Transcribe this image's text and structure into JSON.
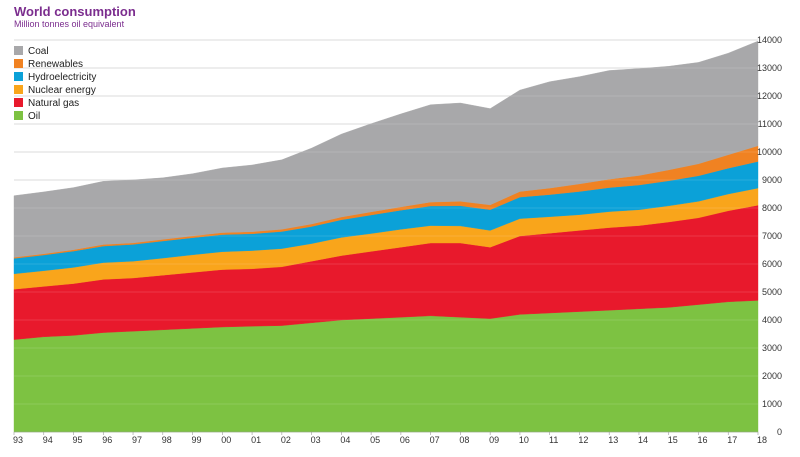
{
  "chart_data": {
    "type": "area",
    "stacked": true,
    "title": "World consumption",
    "subtitle": "Million tonnes oil equivalent",
    "x": [
      "93",
      "94",
      "95",
      "96",
      "97",
      "98",
      "99",
      "00",
      "01",
      "02",
      "03",
      "04",
      "05",
      "06",
      "07",
      "08",
      "09",
      "10",
      "11",
      "12",
      "13",
      "14",
      "15",
      "16",
      "17",
      "18"
    ],
    "ylim": [
      0,
      14000
    ],
    "yticks": [
      0,
      1000,
      2000,
      3000,
      4000,
      5000,
      6000,
      7000,
      8000,
      9000,
      10000,
      11000,
      12000,
      13000,
      14000
    ],
    "grid": true,
    "legend_position": "top-left",
    "series": [
      {
        "name": "Oil",
        "color": "#7dc242",
        "values": [
          3300,
          3400,
          3450,
          3550,
          3600,
          3650,
          3700,
          3750,
          3780,
          3800,
          3900,
          4000,
          4050,
          4100,
          4150,
          4100,
          4050,
          4200,
          4250,
          4300,
          4350,
          4400,
          4450,
          4550,
          4650,
          4700
        ]
      },
      {
        "name": "Natural gas",
        "color": "#e8192c",
        "values": [
          1800,
          1800,
          1850,
          1900,
          1900,
          1950,
          2000,
          2050,
          2050,
          2100,
          2200,
          2300,
          2400,
          2500,
          2600,
          2650,
          2550,
          2800,
          2850,
          2900,
          2950,
          2970,
          3050,
          3100,
          3250,
          3400
        ]
      },
      {
        "name": "Nuclear energy",
        "color": "#f9a51b",
        "values": [
          550,
          560,
          580,
          600,
          600,
          610,
          630,
          640,
          650,
          650,
          630,
          650,
          640,
          640,
          620,
          610,
          600,
          620,
          590,
          560,
          570,
          570,
          580,
          590,
          600,
          610
        ]
      },
      {
        "name": "Hydroelectricity",
        "color": "#0ba1d8",
        "values": [
          550,
          560,
          580,
          590,
          600,
          610,
          610,
          610,
          600,
          610,
          610,
          630,
          660,
          680,
          700,
          720,
          740,
          770,
          790,
          830,
          860,
          880,
          890,
          910,
          920,
          950
        ]
      },
      {
        "name": "Renewables",
        "color": "#f08222",
        "values": [
          40,
          45,
          50,
          55,
          55,
          60,
          65,
          70,
          75,
          80,
          90,
          100,
          110,
          120,
          140,
          160,
          170,
          200,
          230,
          270,
          300,
          340,
          390,
          430,
          480,
          560
        ]
      },
      {
        "name": "Coal",
        "color": "#a8a8aa",
        "values": [
          2200,
          2210,
          2220,
          2260,
          2250,
          2200,
          2220,
          2310,
          2380,
          2480,
          2710,
          2960,
          3150,
          3320,
          3480,
          3510,
          3440,
          3620,
          3800,
          3830,
          3880,
          3820,
          3700,
          3620,
          3630,
          3740
        ]
      }
    ],
    "legend_order": [
      "Coal",
      "Renewables",
      "Hydroelectricity",
      "Nuclear energy",
      "Natural gas",
      "Oil"
    ]
  }
}
